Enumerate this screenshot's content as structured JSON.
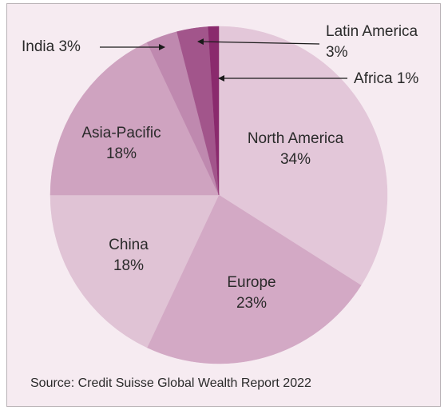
{
  "chart_data": {
    "type": "pie",
    "categories": [
      "North America",
      "Europe",
      "China",
      "Asia-Pacific",
      "India",
      "Latin America",
      "Africa"
    ],
    "values": [
      34,
      23,
      18,
      18,
      3,
      3,
      1
    ],
    "value_labels": [
      "34%",
      "23%",
      "18%",
      "18%",
      "3%",
      "3%",
      "1%"
    ],
    "colors": [
      "#e3c7d9",
      "#d3a9c5",
      "#e0c3d5",
      "#cfa3c0",
      "#bf89af",
      "#a2558b",
      "#8a2a6d"
    ],
    "source": "Source: Credit Suisse Global Wealth Report 2022"
  }
}
